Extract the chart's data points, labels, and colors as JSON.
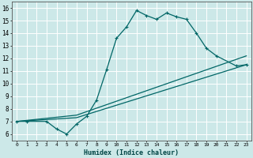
{
  "xlabel": "Humidex (Indice chaleur)",
  "bg_color": "#cce8e8",
  "grid_color": "#ffffff",
  "line_color": "#006666",
  "xlim": [
    -0.5,
    23.5
  ],
  "ylim": [
    5.5,
    16.5
  ],
  "xticks": [
    0,
    1,
    2,
    3,
    4,
    5,
    6,
    7,
    8,
    9,
    10,
    11,
    12,
    13,
    14,
    15,
    16,
    17,
    18,
    19,
    20,
    21,
    22,
    23
  ],
  "yticks": [
    6,
    7,
    8,
    9,
    10,
    11,
    12,
    13,
    14,
    15,
    16
  ],
  "curve1_x": [
    0,
    1,
    3,
    4,
    5,
    6,
    7,
    8,
    9,
    10,
    11,
    12,
    13,
    14,
    15,
    16,
    17,
    18,
    19,
    20,
    22,
    23
  ],
  "curve1_y": [
    7.0,
    7.0,
    7.0,
    6.4,
    6.0,
    6.8,
    7.4,
    8.7,
    11.1,
    13.6,
    14.5,
    15.8,
    15.4,
    15.1,
    15.6,
    15.3,
    15.1,
    14.0,
    12.8,
    12.2,
    11.4,
    11.5
  ],
  "curve2_x": [
    0,
    6,
    23
  ],
  "curve2_y": [
    7.0,
    7.5,
    12.2
  ],
  "curve3_x": [
    0,
    6,
    23
  ],
  "curve3_y": [
    7.0,
    7.3,
    11.5
  ]
}
